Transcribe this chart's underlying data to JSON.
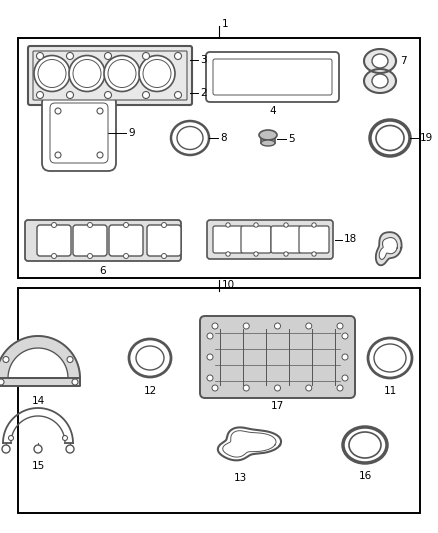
{
  "background": "#ffffff",
  "gc": "#555555",
  "gc_dark": "#333333",
  "label1": "1",
  "label2": "2",
  "label3": "3",
  "label4": "4",
  "label5": "5",
  "label6": "6",
  "label7": "7",
  "label8": "8",
  "label9": "9",
  "label10": "10",
  "label11": "11",
  "label12": "12",
  "label13": "13",
  "label14": "14",
  "label15": "15",
  "label16": "16",
  "label17": "17",
  "label18": "18",
  "label19": "19"
}
